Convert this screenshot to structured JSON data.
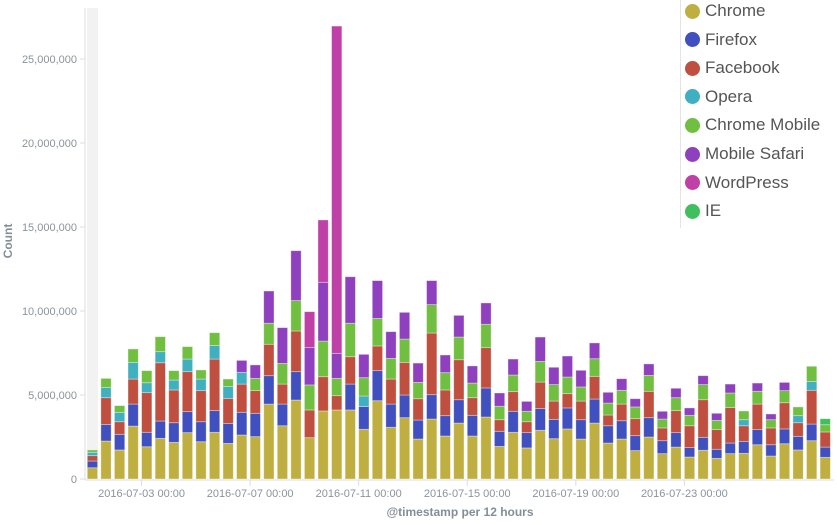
{
  "chart_data": {
    "type": "bar",
    "stacked": true,
    "xlabel": "@timestamp per 12 hours",
    "ylabel": "Count",
    "ylim": [
      0,
      27000000
    ],
    "x_start": "2016-07-01 00:00",
    "x_interval": "12h",
    "bar_count": 55,
    "value_scale": 1000000,
    "x_ticks": [
      {
        "index": 4,
        "label": "2016-07-03 00:00"
      },
      {
        "index": 12,
        "label": "2016-07-07 00:00"
      },
      {
        "index": 20,
        "label": "2016-07-11 00:00"
      },
      {
        "index": 28,
        "label": "2016-07-15 00:00"
      },
      {
        "index": 36,
        "label": "2016-07-19 00:00"
      },
      {
        "index": 44,
        "label": "2016-07-23 00:00"
      }
    ],
    "y_ticks": [
      {
        "value": 0,
        "label": "0"
      },
      {
        "value": 5000000,
        "label": "5,000,000"
      },
      {
        "value": 10000000,
        "label": "10,000,000"
      },
      {
        "value": 15000000,
        "label": "15,000,000"
      },
      {
        "value": 20000000,
        "label": "20,000,000"
      },
      {
        "value": 25000000,
        "label": "25,000,000"
      }
    ],
    "legend_position": "top-right",
    "series": [
      {
        "name": "Chrome",
        "color": "#BFAF40",
        "values": [
          0.67,
          2.26,
          1.73,
          3.15,
          1.92,
          2.42,
          2.18,
          2.76,
          2.22,
          2.78,
          2.12,
          2.62,
          2.52,
          4.46,
          3.17,
          4.7,
          2.46,
          4.05,
          4.11,
          4.11,
          2.96,
          4.66,
          3.08,
          3.65,
          2.38,
          3.57,
          2.56,
          3.33,
          2.56,
          3.69,
          1.94,
          2.78,
          1.85,
          2.9,
          2.4,
          2.98,
          2.38,
          3.33,
          2.14,
          2.38,
          1.69,
          2.5,
          1.51,
          1.9,
          1.31,
          1.71,
          1.23,
          1.51,
          1.53,
          2.04,
          1.37,
          2.1,
          1.73,
          2.28,
          1.29
        ]
      },
      {
        "name": "Firefox",
        "color": "#4050BF",
        "values": [
          0.4,
          0.99,
          0.93,
          1.31,
          0.86,
          1.03,
          1.17,
          1.25,
          1.19,
          1.29,
          1.19,
          1.35,
          1.39,
          1.69,
          1.29,
          1.69,
          0,
          0,
          0,
          1.54,
          1.35,
          1.79,
          1.38,
          1.35,
          1.13,
          1.45,
          1.21,
          1.39,
          1.23,
          1.73,
          0.9,
          1.25,
          0.91,
          1.29,
          1.15,
          1.25,
          1.15,
          1.43,
          1.03,
          1.09,
          0.89,
          1.15,
          0.77,
          0.86,
          0.56,
          0.77,
          0.54,
          0.63,
          0.71,
          0.9,
          0.67,
          0.88,
          0.81,
          0.99,
          0.61
        ]
      },
      {
        "name": "Facebook",
        "color": "#BF5040",
        "values": [
          0.32,
          1.59,
          0.75,
          1.49,
          2.36,
          3.47,
          1.95,
          2.38,
          1.85,
          3.07,
          1.49,
          1.68,
          1.35,
          1.87,
          1.19,
          2.42,
          1.65,
          2.04,
          0.85,
          1.63,
          0,
          1.47,
          1.49,
          1.94,
          1.27,
          3.67,
          1.53,
          2.38,
          1.05,
          2.4,
          0.69,
          1.17,
          0.65,
          1.58,
          1.09,
          0.85,
          1.11,
          1.35,
          0.64,
          0.99,
          1.01,
          1.57,
          0.76,
          1.31,
          1.3,
          2.24,
          1.17,
          2.11,
          0.93,
          1.52,
          1.0,
          1.56,
          0.81,
          2.01,
          0.9
        ]
      },
      {
        "name": "Opera",
        "color": "#40AFBF",
        "values": [
          0.2,
          0.6,
          0.56,
          0.99,
          0.59,
          0.66,
          0.59,
          0.75,
          0.69,
          0.8,
          0.7,
          0.7,
          0,
          0,
          0,
          0,
          0,
          0,
          0,
          0,
          0.63,
          0,
          0,
          0,
          0,
          0,
          0,
          0,
          0,
          0,
          0,
          0,
          0,
          0,
          0,
          0,
          0,
          0,
          0,
          0,
          0,
          0,
          0,
          0,
          0,
          0,
          0,
          0,
          0.36,
          0,
          0,
          0,
          0.42,
          0.53,
          0
        ]
      },
      {
        "name": "Chrome Mobile",
        "color": "#70BF40",
        "values": [
          0.14,
          0.55,
          0.4,
          0.8,
          0.72,
          0.89,
          0.56,
          0.74,
          0.54,
          0.77,
          0.45,
          0,
          0.73,
          1.25,
          1.23,
          1.81,
          1.49,
          2.12,
          1.03,
          1.99,
          1.09,
          1.64,
          1.23,
          1.39,
          0.97,
          1.69,
          1.03,
          1.35,
          0.87,
          1.39,
          0.8,
          0.99,
          0.62,
          1.23,
          0.98,
          0.99,
          0.84,
          1.05,
          0.71,
          0.82,
          0.7,
          0.95,
          0.53,
          0.77,
          0.62,
          0.9,
          0.55,
          0.87,
          0.52,
          0.76,
          0.49,
          0.72,
          0.52,
          0.9,
          0.43
        ]
      },
      {
        "name": "Mobile Safari",
        "color": "#8F40BF",
        "values": [
          0,
          0,
          0,
          0,
          0,
          0,
          0,
          0,
          0,
          0,
          0,
          0.71,
          0.8,
          1.92,
          2.13,
          2.97,
          2.22,
          3.5,
          1.49,
          2.77,
          1.39,
          2.25,
          1.59,
          1.59,
          1.15,
          1.43,
          1.05,
          1.29,
          1.02,
          1.27,
          0.79,
          0.95,
          0.59,
          1.45,
          1.03,
          1.25,
          0.99,
          0.94,
          0.64,
          0.69,
          0.49,
          0.68,
          0.46,
          0.56,
          0.44,
          0.53,
          0.42,
          0.53,
          0,
          0.49,
          0.34,
          0.49,
          0,
          0,
          0
        ]
      },
      {
        "name": "WordPress",
        "color": "#BF40A7",
        "values": [
          0,
          0,
          0,
          0,
          0,
          0,
          0,
          0,
          0,
          0,
          0,
          0,
          0,
          0,
          0,
          0,
          2.14,
          3.71,
          19.48,
          0,
          0,
          0,
          0,
          0,
          0,
          0,
          0,
          0,
          0,
          0,
          0,
          0,
          0,
          0,
          0,
          0,
          0,
          0,
          0,
          0,
          0,
          0,
          0,
          0,
          0,
          0,
          0,
          0,
          0,
          0,
          0,
          0,
          0,
          0,
          0
        ]
      },
      {
        "name": "IE",
        "color": "#40BF5F",
        "values": [
          0,
          0,
          0,
          0,
          0,
          0,
          0,
          0,
          0,
          0,
          0,
          0,
          0,
          0,
          0,
          0,
          0,
          0,
          0,
          0,
          0,
          0,
          0,
          0,
          0,
          0,
          0,
          0,
          0,
          0,
          0,
          0,
          0,
          0,
          0,
          0,
          0,
          0,
          0,
          0,
          0,
          0,
          0,
          0,
          0,
          0,
          0,
          0,
          0,
          0,
          0,
          0,
          0,
          0,
          0.36
        ]
      }
    ]
  }
}
